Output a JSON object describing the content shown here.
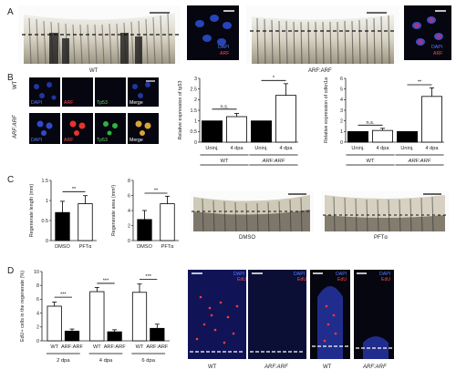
{
  "panels": {
    "A": {
      "letter": "A",
      "labels": [
        "WT",
        "ARF:ARF"
      ],
      "inset_wt": {
        "c1": "DAPI",
        "c2": "ARF"
      },
      "inset_arf": {
        "c1": "DAPI",
        "c2": "ARF"
      }
    },
    "B": {
      "letter": "B",
      "row_labels": [
        "WT",
        "ARF:ARF"
      ],
      "channel_labels": [
        "DAPI",
        "ARF",
        "Tp53",
        "Merge"
      ]
    },
    "C": {
      "letter": "C",
      "photo_labels": [
        "DMSO",
        "PFTα"
      ]
    },
    "D": {
      "letter": "D",
      "image_labels": [
        "WT",
        "ARF:ARF",
        "WT",
        "ARF:ARF"
      ],
      "channel": {
        "c1": "DAPI",
        "c2": "EdU"
      }
    }
  },
  "colors": {
    "bar_dark": "#000000",
    "bar_light": "#ffffff",
    "dapi": "#5a7dff",
    "arf": "#ff4a4a",
    "tp53": "#6ddb6d"
  },
  "chart_data": [
    {
      "type": "bar",
      "id": "tp53",
      "ylabel": "Relative expression of tp53",
      "categories": [
        "Uninj.",
        "4 dpa",
        "Uninj.",
        "4 dpa"
      ],
      "groups": [
        "WT",
        "ARF:ARF"
      ],
      "values": [
        1.0,
        1.2,
        1.0,
        2.2
      ],
      "errors": [
        0,
        0.15,
        0,
        0.55
      ],
      "ylim": [
        0,
        3
      ],
      "yticks": [
        0,
        0.5,
        1,
        1.5,
        2,
        2.5,
        3
      ],
      "ytick_labels": [
        "0",
        "0.5",
        "1",
        "1.5",
        "2",
        "2.5",
        "3"
      ],
      "fills": [
        "black",
        "white",
        "black",
        "white"
      ],
      "significance": [
        "n.s.",
        "*"
      ]
    },
    {
      "type": "bar",
      "id": "cdkn1a",
      "ylabel": "Relative expression of cdkn1a",
      "categories": [
        "Uninj.",
        "4 dpa",
        "Uninj.",
        "4 dpa"
      ],
      "groups": [
        "WT",
        "ARF:ARF"
      ],
      "values": [
        1.0,
        1.1,
        1.0,
        4.3
      ],
      "errors": [
        0,
        0.2,
        0,
        0.8
      ],
      "ylim": [
        0,
        6
      ],
      "yticks": [
        0,
        1,
        2,
        3,
        4,
        5,
        6
      ],
      "ytick_labels": [
        "0",
        "1",
        "2",
        "3",
        "4",
        "5",
        "6"
      ],
      "fills": [
        "black",
        "white",
        "black",
        "white"
      ],
      "significance": [
        "n.s.",
        "**"
      ]
    },
    {
      "type": "bar",
      "id": "length",
      "ylabel": "Regenerate length (mm)",
      "categories": [
        "DMSO",
        "PFTα"
      ],
      "values": [
        0.7,
        0.92
      ],
      "errors": [
        0.28,
        0.2
      ],
      "ylim": [
        0,
        1.5
      ],
      "yticks": [
        0,
        0.5,
        1,
        1.5
      ],
      "ytick_labels": [
        "0",
        "0.5",
        "1",
        "1.5"
      ],
      "fills": [
        "black",
        "white"
      ],
      "significance": [
        "**"
      ]
    },
    {
      "type": "bar",
      "id": "area",
      "ylabel": "Regenerate area (mm²)",
      "categories": [
        "DMSO",
        "PFTα"
      ],
      "values": [
        2.8,
        4.9
      ],
      "errors": [
        1.2,
        1.0
      ],
      "ylim": [
        0,
        8
      ],
      "yticks": [
        0,
        2,
        4,
        6,
        8
      ],
      "ytick_labels": [
        "0",
        "2",
        "4",
        "6",
        "8"
      ],
      "fills": [
        "black",
        "white"
      ],
      "significance": [
        "**"
      ]
    },
    {
      "type": "bar",
      "id": "edu",
      "ylabel": "EdU+ cells in the regenerate (%)",
      "categories": [
        "WT",
        "ARF:ARF",
        "WT",
        "ARF:ARF",
        "WT",
        "ARF:ARF"
      ],
      "groups": [
        "2 dpa",
        "4 dpa",
        "6 dpa"
      ],
      "values": [
        5.0,
        1.4,
        7.1,
        1.3,
        7.0,
        1.8
      ],
      "errors": [
        0.6,
        0.3,
        0.6,
        0.3,
        1.2,
        0.6
      ],
      "ylim": [
        0,
        10
      ],
      "yticks": [
        0,
        2,
        4,
        6,
        8,
        10
      ],
      "ytick_labels": [
        "0",
        "2",
        "4",
        "6",
        "8",
        "10"
      ],
      "fills": [
        "white",
        "black",
        "white",
        "black",
        "white",
        "black"
      ],
      "significance": [
        "***",
        "***",
        "***"
      ]
    }
  ]
}
